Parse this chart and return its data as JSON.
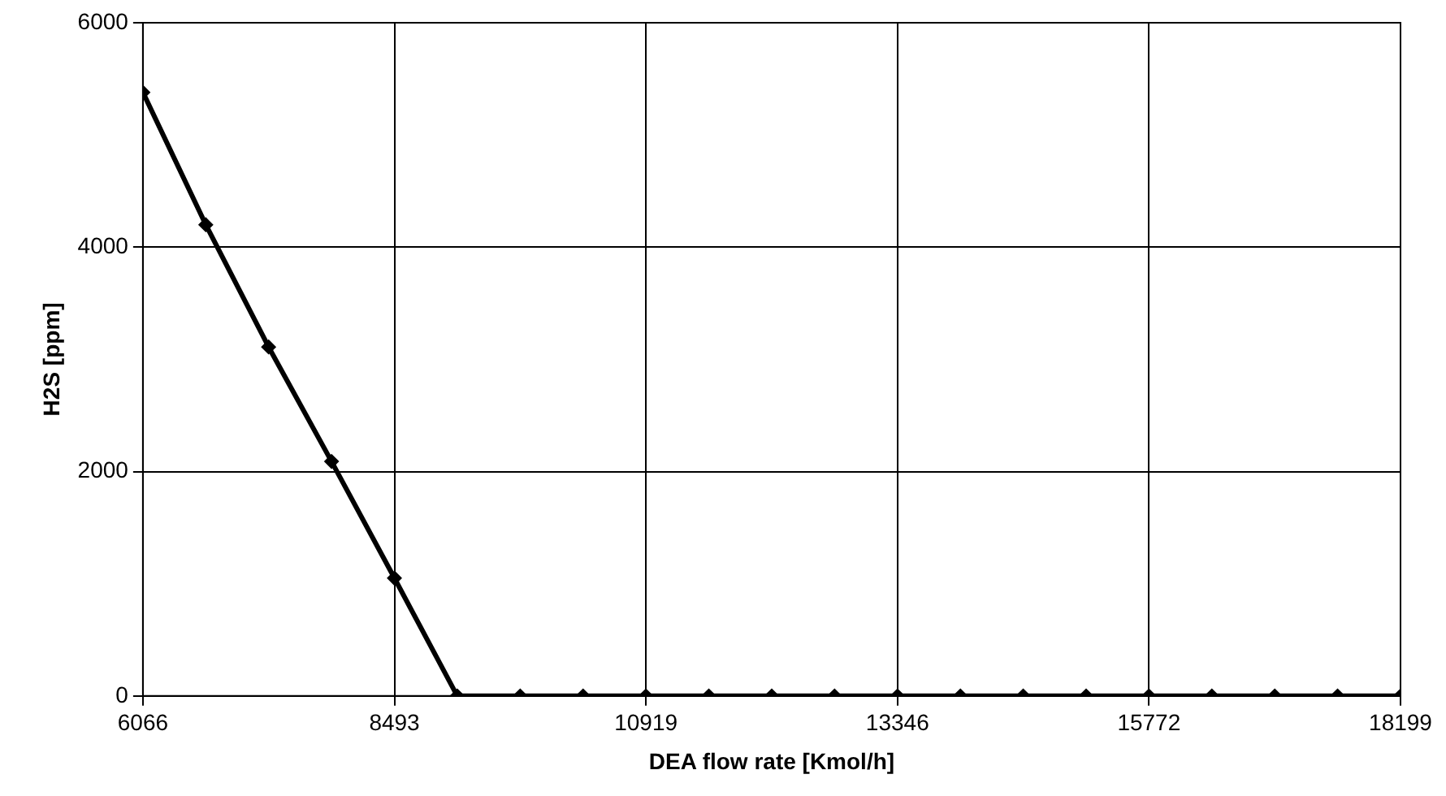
{
  "chart_data": {
    "type": "line",
    "xlabel": "DEA flow rate [Kmol/h]",
    "ylabel": "H2S [ppm]",
    "x": [
      6066,
      6673,
      7279,
      7886,
      8493,
      9099,
      9706,
      10313,
      10919,
      11526,
      12133,
      12739,
      13346,
      13953,
      14559,
      15166,
      15772,
      16379,
      16986,
      17592,
      18199
    ],
    "series": [
      {
        "color": "#000000",
        "values": [
          5380,
          4200,
          3110,
          2090,
          1050,
          0,
          0,
          0,
          0,
          0,
          0,
          0,
          0,
          0,
          0,
          0,
          0,
          0,
          0,
          0,
          0
        ]
      }
    ],
    "xlim": [
      6066,
      18199
    ],
    "xticks": [
      6066,
      8493,
      10919,
      13346,
      15772,
      18199
    ],
    "ylim": [
      0,
      6000
    ],
    "yticks": [
      0,
      2000,
      4000,
      6000
    ],
    "grid": true,
    "legend": false,
    "marker": "diamond",
    "line_style": "solid"
  }
}
